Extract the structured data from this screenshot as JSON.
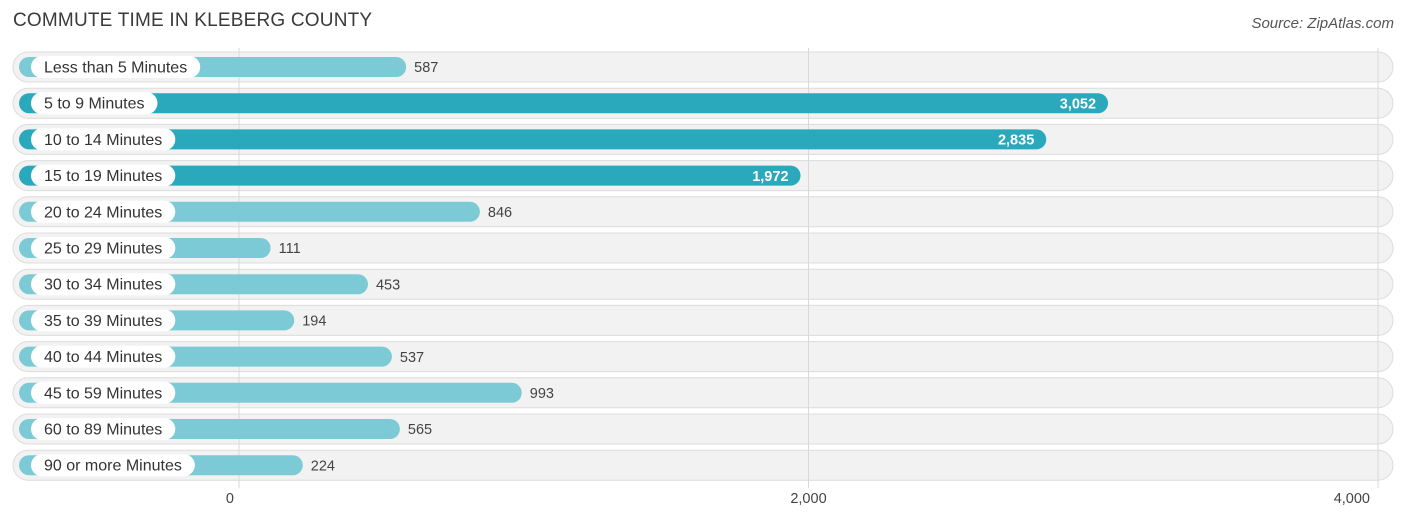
{
  "header": {
    "title": "COMMUTE TIME IN KLEBERG COUNTY",
    "source": "Source: ZipAtlas.com"
  },
  "colors": {
    "bar_strong": "#2aa8bc",
    "bar_light": "#7ccad6",
    "row_background": "#f2f2f2"
  },
  "chart_data": {
    "type": "bar",
    "orientation": "horizontal",
    "categories": [
      "Less than 5 Minutes",
      "5 to 9 Minutes",
      "10 to 14 Minutes",
      "15 to 19 Minutes",
      "20 to 24 Minutes",
      "25 to 29 Minutes",
      "30 to 34 Minutes",
      "35 to 39 Minutes",
      "40 to 44 Minutes",
      "45 to 59 Minutes",
      "60 to 89 Minutes",
      "90 or more Minutes"
    ],
    "values": [
      587,
      3052,
      2835,
      1972,
      846,
      111,
      453,
      194,
      537,
      993,
      565,
      224
    ],
    "value_labels": [
      "587",
      "3,052",
      "2,835",
      "1,972",
      "846",
      "111",
      "453",
      "194",
      "537",
      "993",
      "565",
      "224"
    ],
    "xlim": [
      0,
      4000
    ],
    "ticks": [
      0,
      2000,
      4000
    ],
    "tick_labels": [
      "0",
      "2,000",
      "4,000"
    ],
    "grid": true
  }
}
